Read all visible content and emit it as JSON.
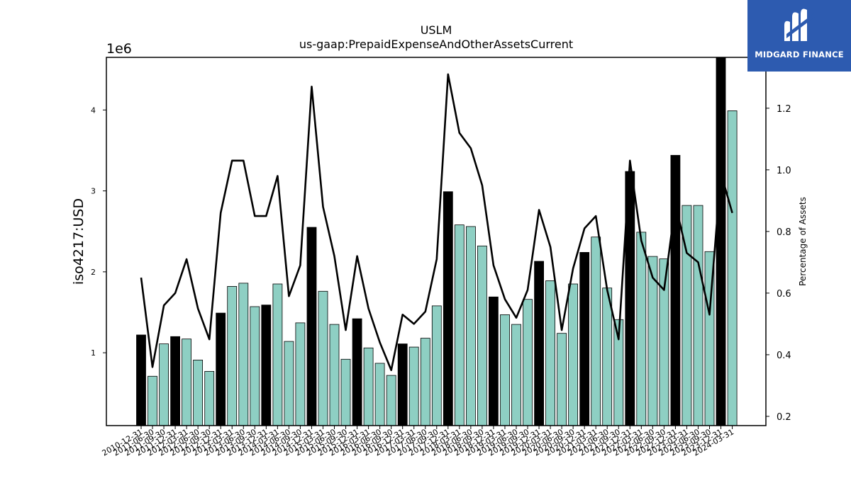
{
  "logo": {
    "text": "MIDGARD FINANCE",
    "icon": "midgard-m-logo-icon",
    "background": "#2d5bb0"
  },
  "chart_data": {
    "type": "bar",
    "title": "USLM",
    "subtitle": "us-gaap:PrepaidExpenseAndOtherAssetsCurrent",
    "ylabel": "iso4217:USD",
    "y_multiplier": "1e6",
    "y2label": "Percentage of Assets",
    "ylim": [
      100000,
      4650000
    ],
    "y2lim": [
      0.17,
      1.365
    ],
    "yticks": [
      1000000,
      2000000,
      3000000,
      4000000
    ],
    "ytick_labels": [
      "1",
      "2",
      "3",
      "4"
    ],
    "y2ticks": [
      0.2,
      0.4,
      0.6,
      0.8,
      1.0,
      1.2
    ],
    "y2tick_labels": [
      "0.2",
      "0.4",
      "0.6",
      "0.8",
      "1.0",
      "1.2"
    ],
    "grid": false,
    "colors": {
      "annual_bar": "#000000",
      "quarter_bar": "#8ecfc3",
      "line": "#000000"
    },
    "categories": [
      "2010-12-31",
      "2011-06-30",
      "2011-09-30",
      "2011-12-31",
      "2012-03-31",
      "2012-06-30",
      "2012-09-30",
      "2012-12-31",
      "2013-03-31",
      "2013-06-30",
      "2013-09-30",
      "2013-12-31",
      "2014-03-31",
      "2014-06-30",
      "2014-09-30",
      "2014-12-31",
      "2015-03-31",
      "2015-06-30",
      "2015-09-30",
      "2015-12-31",
      "2016-03-31",
      "2016-06-30",
      "2016-09-30",
      "2016-12-31",
      "2017-03-31",
      "2017-06-30",
      "2017-09-30",
      "2017-12-31",
      "2018-03-31",
      "2018-06-30",
      "2018-09-30",
      "2018-12-31",
      "2019-03-31",
      "2019-06-30",
      "2019-09-30",
      "2019-12-31",
      "2020-03-31",
      "2020-06-30",
      "2020-09-30",
      "2020-12-31",
      "2021-03-31",
      "2021-06-30",
      "2021-09-30",
      "2021-12-31",
      "2022-03-31",
      "2022-06-30",
      "2022-09-30",
      "2022-12-31",
      "2023-03-31",
      "2023-06-30",
      "2023-09-30",
      "2023-12-31",
      "2024-03-31"
    ],
    "series": [
      {
        "type": "bar",
        "values": [
          1220000,
          710000,
          1110000,
          1200000,
          1170000,
          910000,
          770000,
          1490000,
          1820000,
          1860000,
          1570000,
          1590000,
          1850000,
          1140000,
          1370000,
          2550000,
          1760000,
          1350000,
          920000,
          1420000,
          1060000,
          870000,
          720000,
          1110000,
          1070000,
          1180000,
          1580000,
          2990000,
          2580000,
          2560000,
          2320000,
          1690000,
          1470000,
          1350000,
          1660000,
          2130000,
          1890000,
          1240000,
          1850000,
          2240000,
          2430000,
          1800000,
          1410000,
          3240000,
          2490000,
          2190000,
          2160000,
          3440000,
          2820000,
          2820000,
          2250000,
          4650000,
          3990000
        ],
        "annual": [
          true,
          false,
          false,
          true,
          false,
          false,
          false,
          true,
          false,
          false,
          false,
          true,
          false,
          false,
          false,
          true,
          false,
          false,
          false,
          true,
          false,
          false,
          false,
          true,
          false,
          false,
          false,
          true,
          false,
          false,
          false,
          true,
          false,
          false,
          false,
          true,
          false,
          false,
          false,
          true,
          false,
          false,
          false,
          true,
          false,
          false,
          false,
          true,
          false,
          false,
          false,
          true,
          false
        ]
      },
      {
        "name": "Percentage of Assets",
        "type": "line",
        "axis": "y2",
        "values": [
          0.65,
          0.36,
          0.56,
          0.6,
          0.71,
          0.55,
          0.45,
          0.86,
          1.03,
          1.03,
          0.85,
          0.85,
          0.98,
          0.59,
          0.69,
          1.27,
          0.88,
          0.72,
          0.48,
          0.72,
          0.55,
          0.44,
          0.35,
          0.53,
          0.5,
          0.54,
          0.71,
          1.31,
          1.12,
          1.07,
          0.95,
          0.69,
          0.58,
          0.52,
          0.61,
          0.87,
          0.75,
          0.48,
          0.68,
          0.81,
          0.85,
          0.61,
          0.45,
          1.03,
          0.77,
          0.65,
          0.61,
          0.89,
          0.73,
          0.7,
          0.53,
          0.99,
          0.86
        ]
      }
    ]
  }
}
